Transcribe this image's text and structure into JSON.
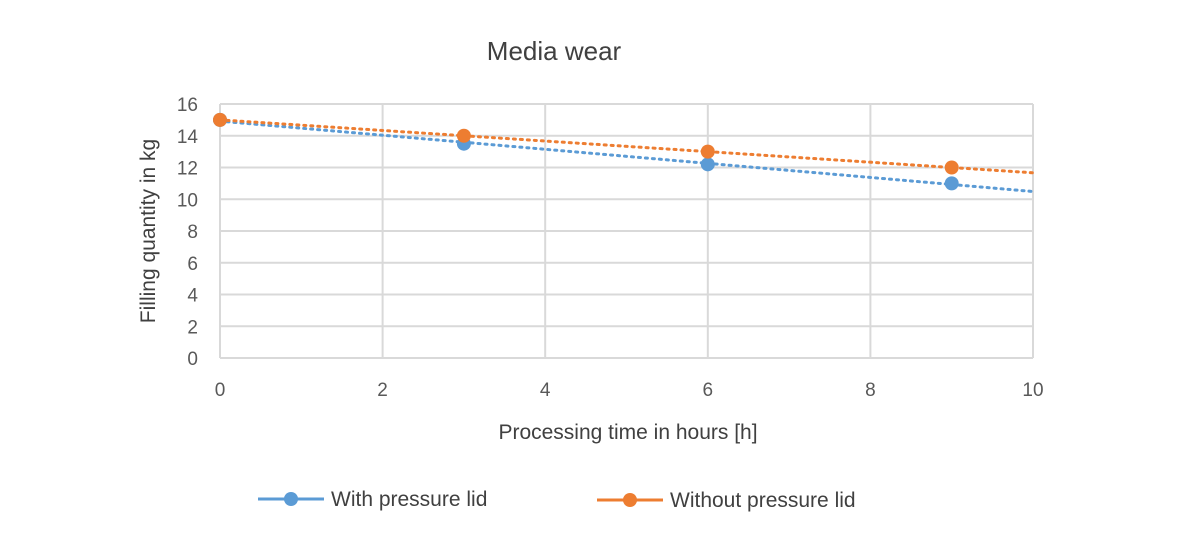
{
  "chart_data": {
    "type": "scatter",
    "title": "Media wear",
    "xlabel": "Processing time in hours [h]",
    "ylabel": "Filling quantity in kg",
    "xlim": [
      0,
      10
    ],
    "ylim": [
      0,
      16
    ],
    "xticks": [
      0,
      2,
      4,
      6,
      8,
      10
    ],
    "yticks": [
      0,
      2,
      4,
      6,
      8,
      10,
      12,
      14,
      16
    ],
    "grid": true,
    "legend_position": "bottom",
    "series": [
      {
        "name": "With pressure lid",
        "color": "#5B9BD5",
        "x": [
          0,
          3,
          6,
          9
        ],
        "y": [
          15,
          13.5,
          12.2,
          11
        ],
        "trendline": "linear-dotted"
      },
      {
        "name": "Without pressure lid",
        "color": "#ED7D31",
        "x": [
          0,
          3,
          6,
          9
        ],
        "y": [
          15,
          14,
          13,
          12
        ],
        "trendline": "linear-dotted"
      }
    ]
  }
}
